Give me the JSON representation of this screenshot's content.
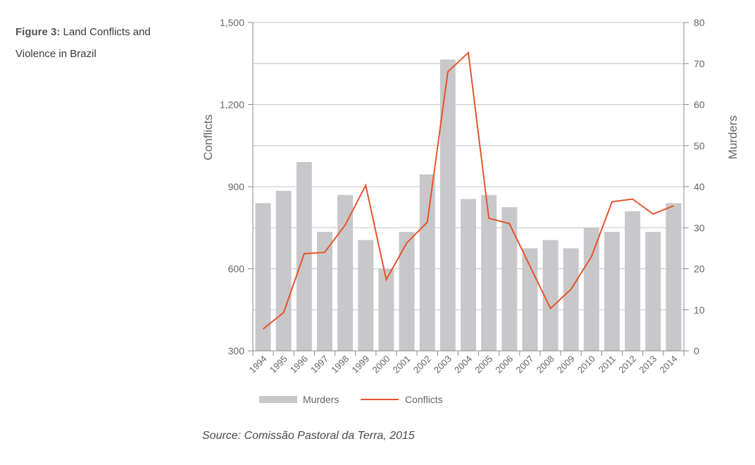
{
  "figure": {
    "label": "Figure 3:",
    "title": "Land Conflicts and Violence in Brazil",
    "source": "Source: Comissão Pastoral da Terra, 2015"
  },
  "colors": {
    "bars": "#c8c8ca",
    "line": "#e8542a",
    "grid": "#c6c6c6",
    "axis": "#8a8a8a",
    "text": "#666666"
  },
  "chart_data": {
    "type": "bar+line",
    "categories": [
      "1994",
      "1995",
      "1996",
      "1997",
      "1998",
      "1999",
      "2000",
      "2001",
      "2002",
      "2003",
      "2004",
      "2005",
      "2006",
      "2007",
      "2008",
      "2009",
      "2010",
      "2011",
      "2012",
      "2013",
      "2014"
    ],
    "series": [
      {
        "name": "Murders",
        "type": "bar",
        "axis": "right",
        "values": [
          36,
          39,
          46,
          29,
          38,
          27,
          20,
          29,
          43,
          71,
          37,
          38,
          35,
          25,
          27,
          25,
          30,
          29,
          34,
          29,
          36
        ]
      },
      {
        "name": "Conflicts",
        "type": "line",
        "axis": "left",
        "values": [
          380,
          440,
          655,
          660,
          760,
          905,
          560,
          695,
          770,
          1320,
          1390,
          785,
          765,
          610,
          455,
          525,
          645,
          845,
          855,
          800,
          830
        ]
      }
    ],
    "left_axis": {
      "label": "Conflicts",
      "min": 300,
      "max": 1500,
      "ticks": [
        300,
        600,
        900,
        1200,
        1500
      ],
      "tick_labels": [
        "300",
        "600",
        "900",
        "1,200",
        "1,500"
      ]
    },
    "right_axis": {
      "label": "Murders",
      "min": 0,
      "max": 80,
      "ticks": [
        0,
        10,
        20,
        30,
        40,
        50,
        60,
        70,
        80
      ],
      "tick_labels": [
        "0",
        "10",
        "20",
        "30",
        "40",
        "50",
        "60",
        "70",
        "80"
      ]
    },
    "grid": true,
    "legend": {
      "position": "bottom-left"
    }
  }
}
